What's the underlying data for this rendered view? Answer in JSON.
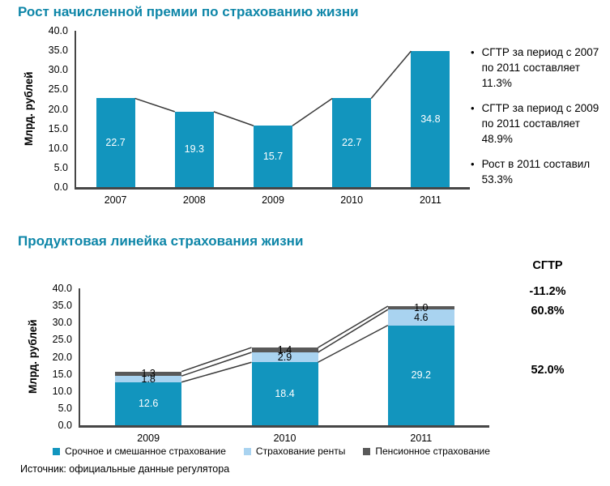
{
  "source": "Источник: официальные данные регулятора",
  "bullets": [
    "СГТР за период с 2007 по 2011 составляет 11.3%",
    "СГТР за период с 2009 по 2011 составляет 48.9%",
    "Рост в 2011 составил 53.3%"
  ],
  "colors": {
    "title_teal": "#0E86A8",
    "bar_teal": "#1295BE",
    "light_blue": "#A9D3F0",
    "dark_gray": "#595959",
    "axis": "#464646",
    "line": "#3A3A3A"
  },
  "chart_data": [
    {
      "type": "bar",
      "title": "Рост начисленной премии по страхованию жизни",
      "categories": [
        "2007",
        "2008",
        "2009",
        "2010",
        "2011"
      ],
      "values": [
        22.7,
        19.3,
        15.7,
        22.7,
        34.8
      ],
      "xlabel": "",
      "ylabel": "Млрд. рублей",
      "ylim": [
        0,
        40
      ],
      "ytick_step": 5,
      "grid": false,
      "trendline": true,
      "bar_color": "#1295BE",
      "line_color": "#3A3A3A",
      "value_labels": "inside-white"
    },
    {
      "type": "bar",
      "stacked": true,
      "title": "Продуктовая линейка страхования жизни",
      "categories": [
        "2009",
        "2010",
        "2011"
      ],
      "series": [
        {
          "name": "Срочное и смешанное страхование",
          "values": [
            12.6,
            18.4,
            29.2
          ],
          "color": "#1295BE",
          "label_color": "#FFFFFF"
        },
        {
          "name": "Страхование ренты",
          "values": [
            1.8,
            2.9,
            4.6
          ],
          "color": "#A9D3F0",
          "label_color": "#000000"
        },
        {
          "name": "Пенсионное страхование",
          "values": [
            1.3,
            1.4,
            1.0
          ],
          "color": "#595959",
          "label_color": "#000000"
        }
      ],
      "xlabel": "",
      "ylabel": "Млрд. рублей",
      "ylim": [
        0,
        40
      ],
      "ytick_step": 5,
      "grid": false,
      "connectors": true,
      "line_color": "#3A3A3A",
      "legend_position": "bottom",
      "cagr": {
        "header": "СГТР",
        "values": [
          "-11.2%",
          "60.8%",
          "52.0%"
        ]
      }
    }
  ]
}
